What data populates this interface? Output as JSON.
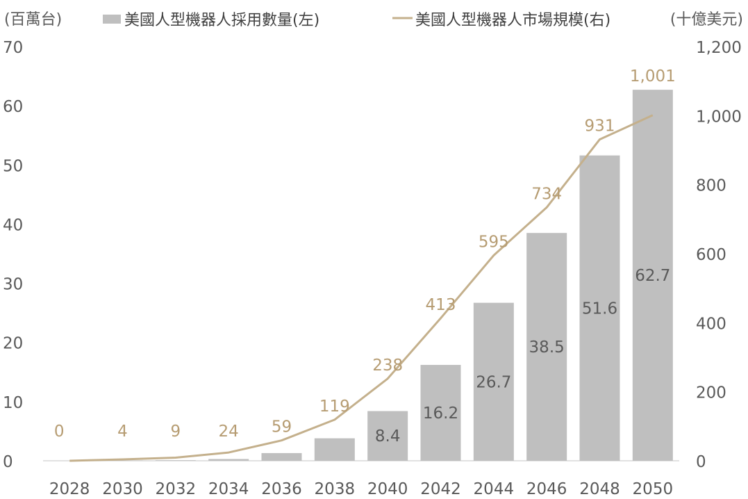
{
  "chart_data": {
    "type": "bar",
    "title": "",
    "left_axis_unit": "(百萬台)",
    "right_axis_unit": "(十億美元)",
    "categories": [
      "2028",
      "2030",
      "2032",
      "2034",
      "2036",
      "2038",
      "2040",
      "2042",
      "2044",
      "2046",
      "2048",
      "2050"
    ],
    "left_ylim": [
      0,
      70
    ],
    "left_yticks": [
      "0",
      "10",
      "20",
      "30",
      "40",
      "50",
      "60",
      "70"
    ],
    "right_ylim": [
      0,
      1200
    ],
    "right_yticks": [
      "0",
      "200",
      "400",
      "600",
      "800",
      "1,000",
      "1,200"
    ],
    "grid": false,
    "legend_position": "top",
    "series": [
      {
        "name": "美國人型機器人採用數量(左)",
        "type": "bar",
        "axis": "left",
        "color": "#BFBFBF",
        "values": [
          0,
          0.05,
          0.1,
          0.3,
          1.3,
          3.8,
          8.4,
          16.2,
          26.7,
          38.5,
          51.6,
          62.7
        ],
        "labels": [
          "",
          "",
          "",
          "",
          "",
          "",
          "8.4",
          "16.2",
          "26.7",
          "38.5",
          "51.6",
          "62.7"
        ]
      },
      {
        "name": "美國人型機器人市場規模(右)",
        "type": "line",
        "axis": "right",
        "color": "#C4B08C",
        "label_color": "#B69C72",
        "values": [
          0,
          4,
          9,
          24,
          59,
          119,
          238,
          413,
          595,
          734,
          931,
          1001
        ],
        "labels": [
          "0",
          "4",
          "9",
          "24",
          "59",
          "119",
          "238",
          "413",
          "595",
          "734",
          "931",
          "1,001"
        ]
      }
    ]
  }
}
